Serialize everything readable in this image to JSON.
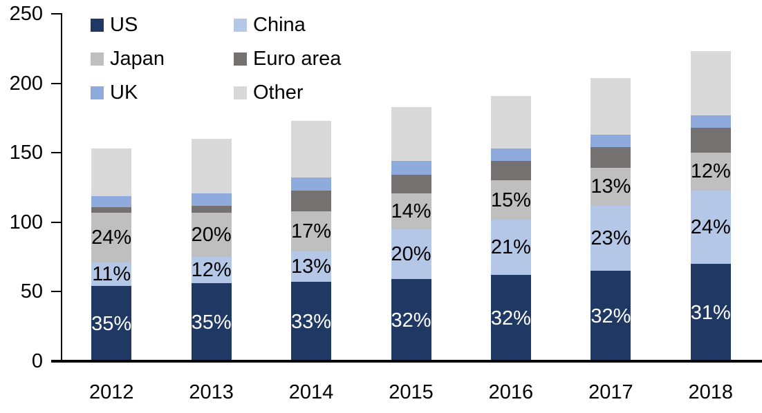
{
  "chart_data": {
    "type": "bar",
    "stacked": true,
    "title": "",
    "xlabel": "",
    "ylabel": "",
    "categories": [
      "2012",
      "2013",
      "2014",
      "2015",
      "2016",
      "2017",
      "2018"
    ],
    "series": [
      {
        "name": "US",
        "color": "#1f3864",
        "values": [
          54,
          56,
          57,
          59,
          62,
          65,
          70
        ],
        "labels": [
          "35%",
          "35%",
          "33%",
          "32%",
          "32%",
          "32%",
          "31%"
        ],
        "label_color": "#ffffff"
      },
      {
        "name": "China",
        "color": "#b4c7e7",
        "values": [
          17,
          19,
          22,
          36,
          40,
          47,
          53
        ],
        "labels": [
          "11%",
          "12%",
          "13%",
          "20%",
          "21%",
          "23%",
          "24%"
        ],
        "label_color": "#000000"
      },
      {
        "name": "Japan",
        "color": "#bfbfbf",
        "values": [
          36,
          32,
          29,
          26,
          28,
          27,
          27
        ],
        "labels": [
          "24%",
          "20%",
          "17%",
          "14%",
          "15%",
          "13%",
          "12%"
        ],
        "label_color": "#000000"
      },
      {
        "name": "Euro area",
        "color": "#757171",
        "values": [
          4,
          5,
          15,
          13,
          14,
          15,
          18
        ],
        "labels": null,
        "label_color": null
      },
      {
        "name": "UK",
        "color": "#8faadc",
        "values": [
          8,
          9,
          9,
          10,
          9,
          9,
          9
        ],
        "labels": null,
        "label_color": null
      },
      {
        "name": "Other",
        "color": "#d9d9d9",
        "values": [
          34,
          39,
          41,
          39,
          38,
          41,
          46
        ],
        "labels": null,
        "label_color": null
      }
    ],
    "totals": [
      153,
      160,
      173,
      183,
      191,
      204,
      223
    ],
    "y_axis": {
      "min": 0,
      "max": 250,
      "tick_step": 50,
      "tick_labels": [
        "0",
        "50",
        "100",
        "150",
        "200",
        "250"
      ]
    },
    "legend": {
      "position": "top-left",
      "columns": 2,
      "order": [
        "US",
        "China",
        "Japan",
        "Euro area",
        "UK",
        "Other"
      ]
    },
    "grid": false,
    "axis_color": "#000000",
    "text_color": "#000000"
  }
}
